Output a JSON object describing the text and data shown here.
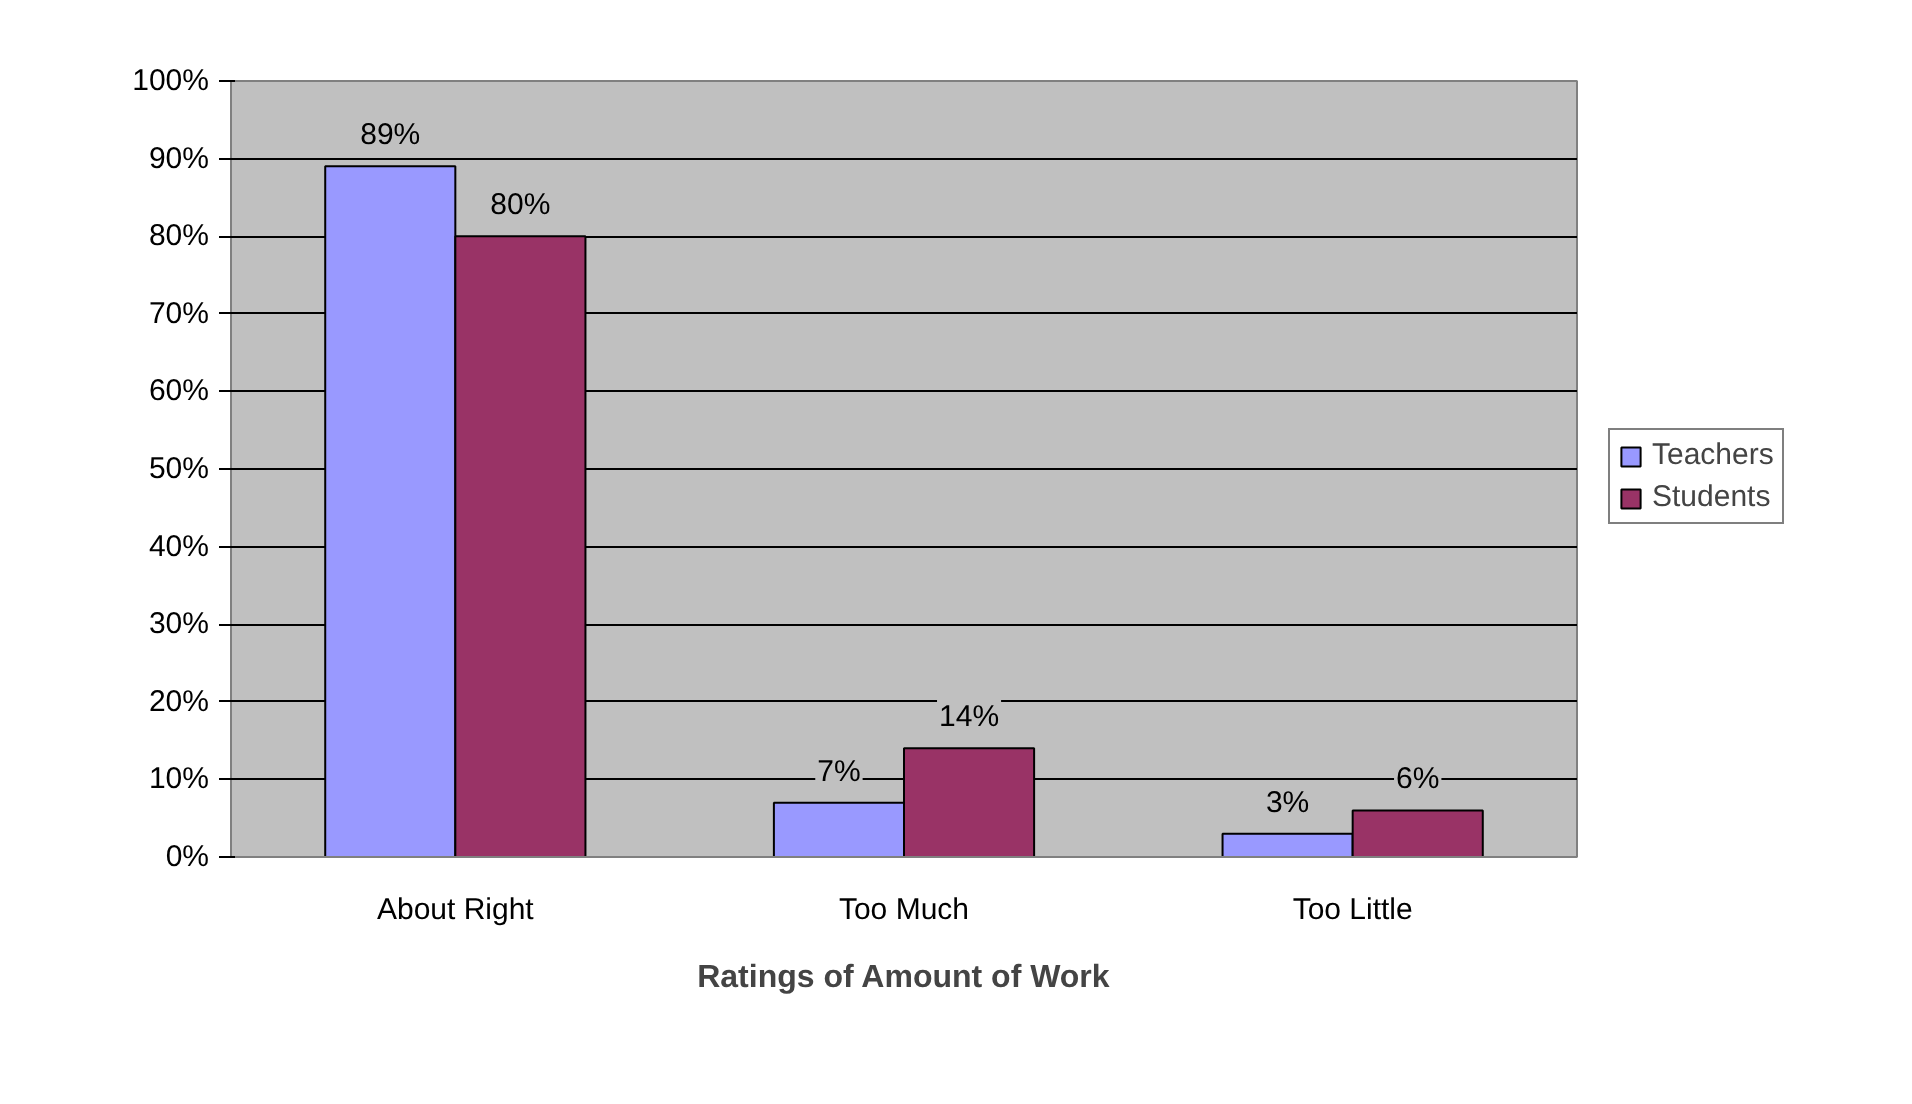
{
  "chart_data": {
    "type": "bar",
    "xlabel": "Ratings of Amount of Work",
    "categories": [
      "About Right",
      "Too Much",
      "Too Little"
    ],
    "series": [
      {
        "name": "Teachers",
        "color": "#9999ff",
        "values": [
          89,
          7,
          3
        ],
        "value_labels": [
          "89%",
          "7%",
          "3%"
        ]
      },
      {
        "name": "Students",
        "color": "#993366",
        "values": [
          80,
          14,
          6
        ],
        "value_labels": [
          "80%",
          "14%",
          "6%"
        ]
      }
    ],
    "ylim": [
      0,
      100
    ],
    "yticks": [
      {
        "value": 0,
        "label": "0%"
      },
      {
        "value": 10,
        "label": "10%"
      },
      {
        "value": 20,
        "label": "20%"
      },
      {
        "value": 30,
        "label": "30%"
      },
      {
        "value": 40,
        "label": "40%"
      },
      {
        "value": 50,
        "label": "50%"
      },
      {
        "value": 60,
        "label": "60%"
      },
      {
        "value": 70,
        "label": "70%"
      },
      {
        "value": 80,
        "label": "80%"
      },
      {
        "value": 90,
        "label": "90%"
      },
      {
        "value": 100,
        "label": "100%"
      }
    ],
    "grid": "y",
    "legend": "right"
  }
}
